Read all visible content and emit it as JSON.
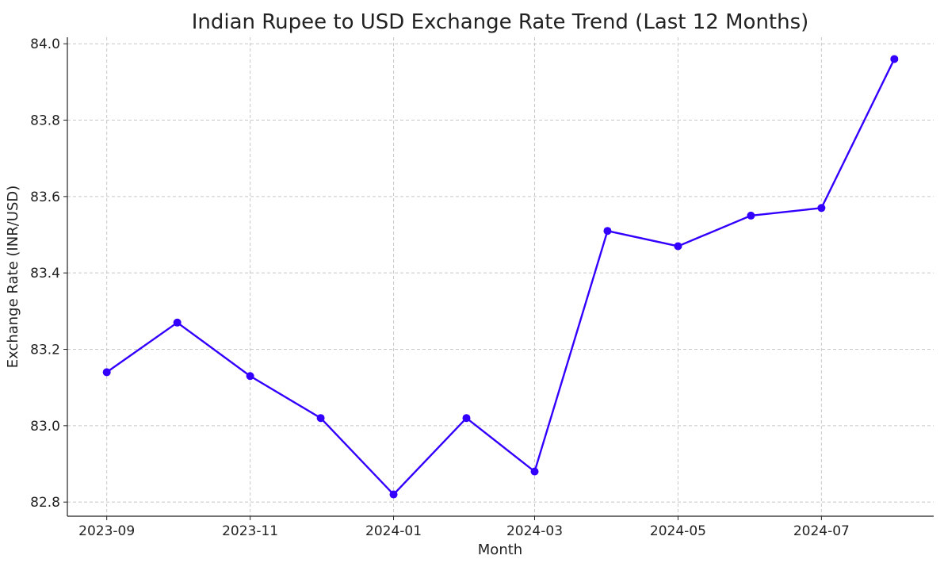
{
  "chart_data": {
    "type": "line",
    "title": "Indian Rupee to USD Exchange Rate Trend (Last 12 Months)",
    "xlabel": "Month",
    "ylabel": "Exchange Rate (INR/USD)",
    "x": [
      "2023-09-01",
      "2023-10-01",
      "2023-11-01",
      "2023-12-01",
      "2024-01-01",
      "2024-02-01",
      "2024-03-01",
      "2024-04-01",
      "2024-05-01",
      "2024-06-01",
      "2024-07-01",
      "2024-08-01"
    ],
    "series": [
      {
        "values": [
          83.14,
          83.27,
          83.13,
          83.02,
          82.82,
          83.02,
          82.88,
          83.51,
          83.47,
          83.55,
          83.57,
          83.96
        ],
        "color": "#3300ff",
        "marker": "circle"
      }
    ],
    "x_ticks": [
      "2023-09",
      "2023-11",
      "2024-01",
      "2024-03",
      "2024-05",
      "2024-07"
    ],
    "y_ticks": [
      "82.8",
      "83.0",
      "83.2",
      "83.4",
      "83.6",
      "83.8",
      "84.0"
    ],
    "ylim": [
      82.763,
      84.017
    ],
    "grid": true,
    "grid_style": "dashed"
  }
}
